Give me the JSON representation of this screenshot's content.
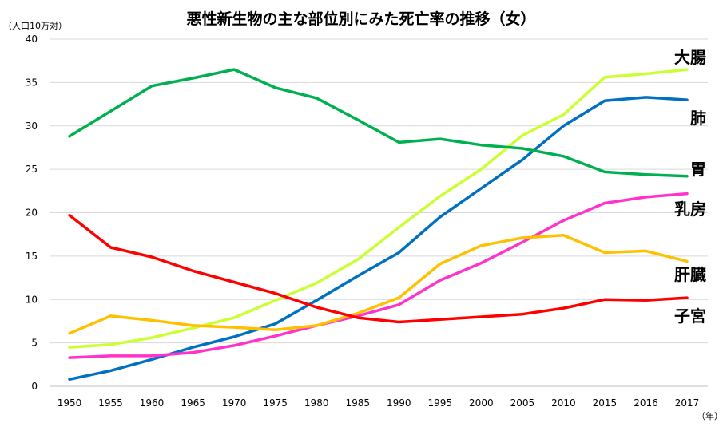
{
  "chart_data": {
    "type": "line",
    "title": "悪性新生物の主な部位別にみた死亡率の推移（女）",
    "ylabel": "（人口10万対）",
    "xlabel": "（年）",
    "ylim": [
      0,
      40
    ],
    "yticks": [
      0,
      5,
      10,
      15,
      20,
      25,
      30,
      35,
      40
    ],
    "categories": [
      "1950",
      "1955",
      "1960",
      "1965",
      "1970",
      "1975",
      "1980",
      "1985",
      "1990",
      "1995",
      "2000",
      "2005",
      "2010",
      "2015",
      "2016",
      "2017"
    ],
    "grid": true,
    "series": [
      {
        "name": "大腸",
        "color": "#ccff33",
        "values": [
          4.5,
          4.8,
          5.6,
          6.7,
          7.9,
          9.9,
          11.9,
          14.6,
          18.3,
          21.9,
          25.0,
          28.9,
          31.3,
          35.6,
          36.0,
          36.5
        ]
      },
      {
        "name": "肺",
        "color": "#0070c0",
        "values": [
          0.8,
          1.8,
          3.1,
          4.5,
          5.7,
          7.2,
          9.9,
          12.7,
          15.4,
          19.5,
          22.8,
          26.1,
          30.0,
          32.9,
          33.3,
          33.0
        ]
      },
      {
        "name": "胃",
        "color": "#00b050",
        "values": [
          28.8,
          31.7,
          34.6,
          35.5,
          36.5,
          34.4,
          33.2,
          30.7,
          28.1,
          28.5,
          27.8,
          27.4,
          26.5,
          24.7,
          24.4,
          24.2
        ]
      },
      {
        "name": "乳房",
        "color": "#ff33cc",
        "values": [
          3.3,
          3.5,
          3.5,
          3.9,
          4.7,
          5.8,
          7.0,
          8.1,
          9.4,
          12.2,
          14.2,
          16.6,
          19.1,
          21.1,
          21.8,
          22.2
        ]
      },
      {
        "name": "肝臓",
        "color": "#ffc000",
        "values": [
          6.1,
          8.1,
          7.6,
          7.0,
          6.8,
          6.5,
          7.0,
          8.4,
          10.2,
          14.1,
          16.2,
          17.1,
          17.4,
          15.4,
          15.6,
          14.4
        ]
      },
      {
        "name": "子宮",
        "color": "#ff0000",
        "values": [
          19.7,
          16.0,
          14.9,
          13.3,
          12.0,
          10.7,
          9.1,
          7.9,
          7.4,
          7.7,
          8.0,
          8.3,
          9.0,
          10.0,
          9.9,
          10.2
        ]
      }
    ]
  }
}
